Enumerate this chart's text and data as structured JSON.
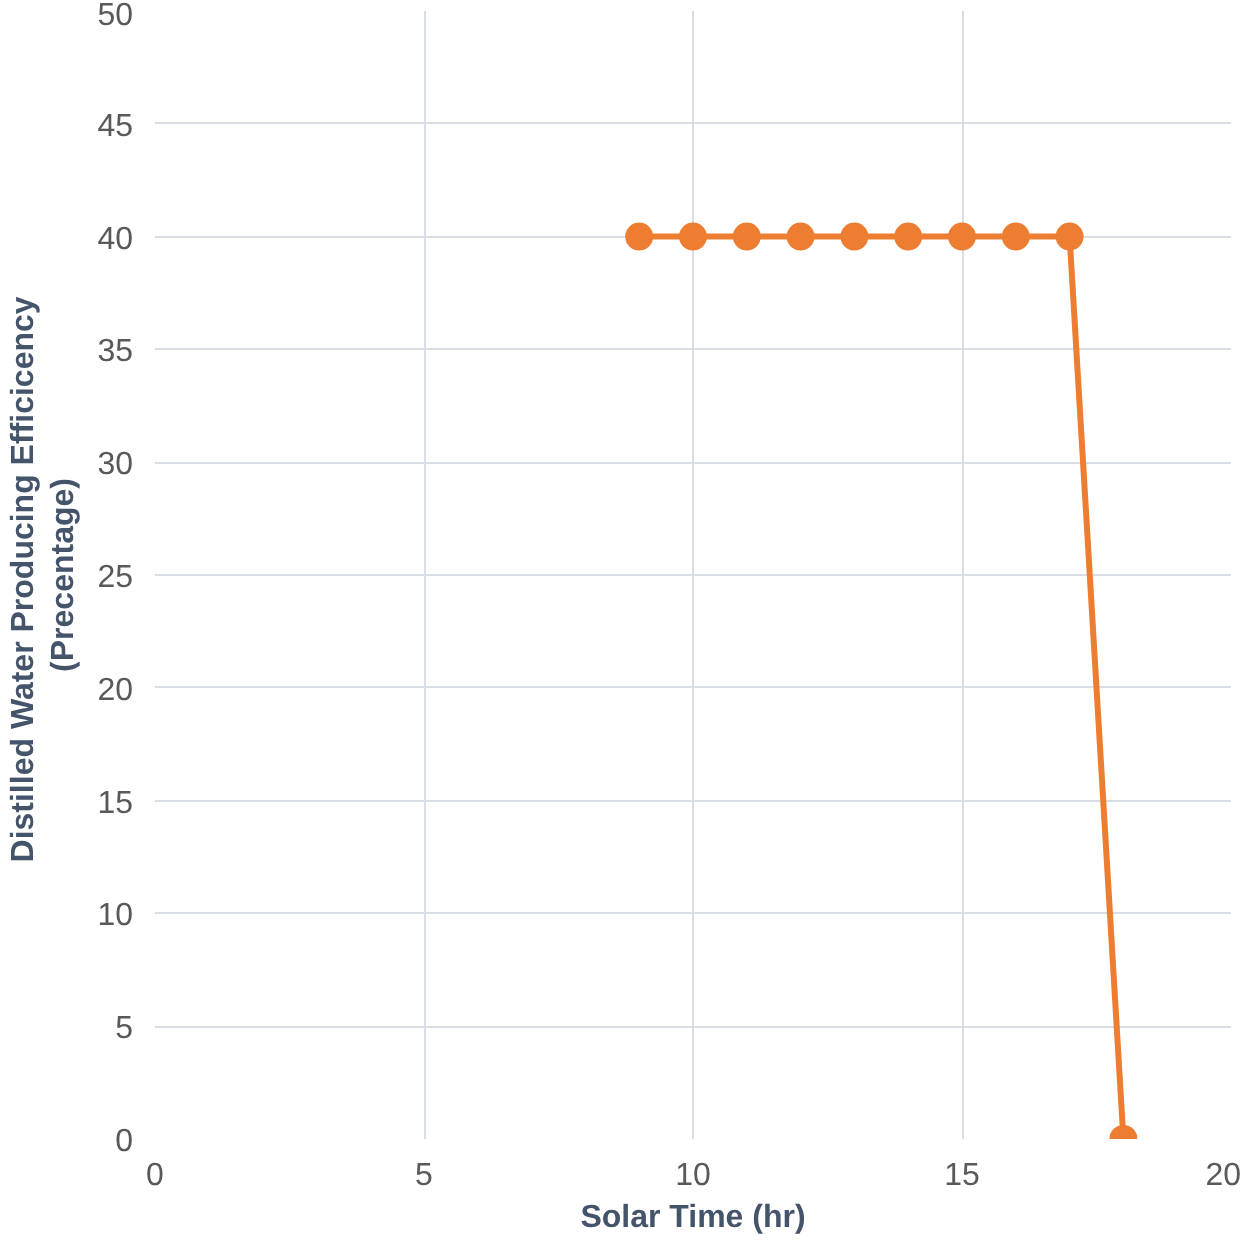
{
  "chart_data": {
    "type": "line",
    "xlabel": "Solar Time (hr)",
    "ylabel": "Distilled Water Producing  Efficicency\n(Precentage)",
    "x": [
      9,
      10,
      11,
      12,
      13,
      14,
      15,
      16,
      17,
      18
    ],
    "series": [
      {
        "color": "#ed7d31",
        "values": [
          40,
          40,
          40,
          40,
          40,
          40,
          40,
          40,
          40,
          0
        ]
      }
    ],
    "xlim": [
      0,
      20
    ],
    "xticks": [
      0,
      5,
      10,
      15,
      20
    ],
    "ylim": [
      0,
      50
    ],
    "yticks": [
      0,
      5,
      10,
      15,
      20,
      25,
      30,
      35,
      40,
      45,
      50
    ],
    "grid": true,
    "marker": "circle",
    "line_style": "solid"
  }
}
